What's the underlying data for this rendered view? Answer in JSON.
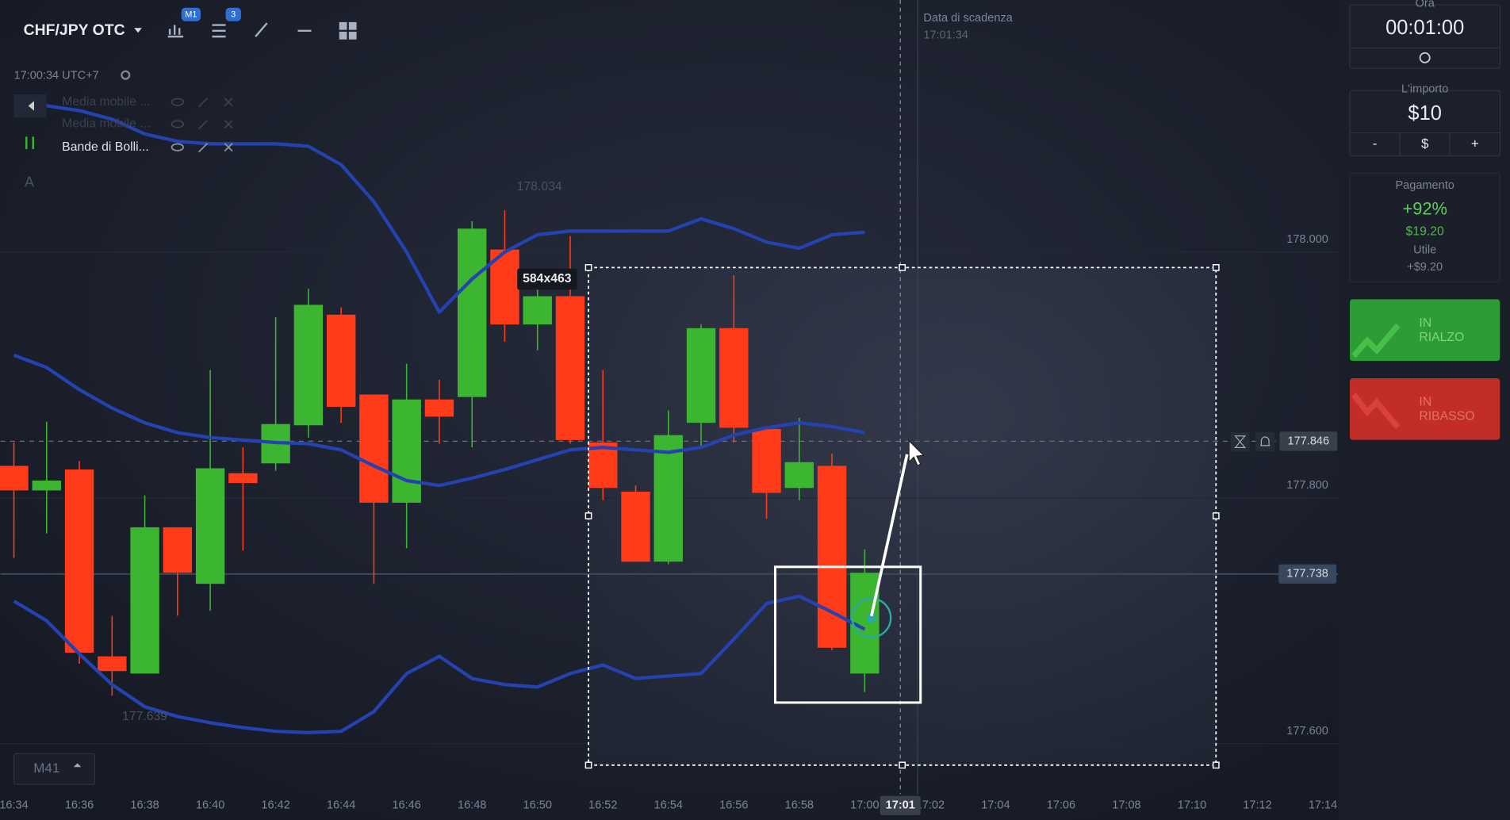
{
  "toolbar": {
    "symbol": "CHF/JPY OTC",
    "timeframe_badge": "M1",
    "indicators_badge": "3"
  },
  "info": {
    "time": "17:00:34 UTC+7"
  },
  "indicators": [
    "Media mobile ...",
    "Media mobile ...",
    "Bande di Bolli..."
  ],
  "text_tool": "A",
  "expiry": {
    "label": "Data di scadenza",
    "time": "17:01:34"
  },
  "selection_size": "584x463",
  "timeframe_selector": "M41",
  "panel": {
    "time_label": "Ora",
    "time": "00:01:00",
    "amount_label": "L'importo",
    "amount": "$10",
    "minus": "-",
    "currency": "$",
    "plus": "+",
    "payout_label": "Pagamento",
    "payout_percent": "+92%",
    "payout_amount": "$19.20",
    "profit_label": "Utile",
    "profit": "+$9.20",
    "up_button": [
      "IN",
      "RIALZO"
    ],
    "down_button": [
      "IN",
      "RIBASSO"
    ]
  },
  "chart_data": {
    "type": "candlestick",
    "x_axis_labels": [
      "16:34",
      "16:36",
      "16:38",
      "16:40",
      "16:42",
      "16:44",
      "16:46",
      "16:48",
      "16:50",
      "16:52",
      "16:54",
      "16:56",
      "16:58",
      "17:00",
      "17:02",
      "17:04",
      "17:06",
      "17:08",
      "17:10",
      "17:12",
      "17:14"
    ],
    "crosshair_time": "17:01",
    "ylim": [
      177.559,
      178.205
    ],
    "yticks": [
      {
        "value": 178,
        "label": "178.000"
      },
      {
        "value": 177.8,
        "label": "177.800"
      },
      {
        "value": 177.6,
        "label": "177.600"
      }
    ],
    "current_price": 177.846,
    "crosshair_price": 177.738,
    "high_label": 178.034,
    "low_label": 177.639,
    "up_color": "#3cb531",
    "down_color": "#ff3b1a",
    "open": [
      177.826,
      177.806,
      177.823,
      177.671,
      177.657,
      177.776,
      177.73,
      177.82,
      177.828,
      177.859,
      177.949,
      177.884,
      177.796,
      177.88,
      177.882,
      178.002,
      177.941,
      177.964,
      177.845,
      177.805,
      177.748,
      177.861,
      177.938,
      177.856,
      177.808,
      177.826,
      177.657
    ],
    "high": [
      177.845,
      177.862,
      177.83,
      177.704,
      177.802,
      177.776,
      177.904,
      177.841,
      177.947,
      177.97,
      177.955,
      177.884,
      177.909,
      177.896,
      178.025,
      178.034,
      177.974,
      178.013,
      177.904,
      177.81,
      177.871,
      177.941,
      177.981,
      177.856,
      177.865,
      177.836,
      177.758
    ],
    "low": [
      177.751,
      177.771,
      177.665,
      177.639,
      177.657,
      177.704,
      177.708,
      177.757,
      177.822,
      177.849,
      177.861,
      177.73,
      177.759,
      177.844,
      177.841,
      177.927,
      177.92,
      177.844,
      177.798,
      177.748,
      177.746,
      177.841,
      177.845,
      177.783,
      177.798,
      177.676,
      177.642
    ],
    "close": [
      177.806,
      177.814,
      177.674,
      177.659,
      177.776,
      177.739,
      177.824,
      177.812,
      177.86,
      177.957,
      177.874,
      177.796,
      177.88,
      177.866,
      178.019,
      177.941,
      177.964,
      177.847,
      177.808,
      177.748,
      177.851,
      177.938,
      177.857,
      177.804,
      177.829,
      177.678,
      177.739
    ],
    "bollinger": {
      "color": "#2443b0",
      "upper": [
        178.123,
        178.119,
        178.115,
        178.108,
        178.096,
        178.09,
        178.088,
        178.088,
        178.088,
        178.086,
        178.071,
        178.041,
        178.0,
        177.951,
        177.978,
        178.0,
        178.014,
        178.017,
        178.017,
        178.017,
        178.017,
        178.027,
        178.019,
        178.008,
        178.003,
        178.014,
        178.016
      ],
      "middle": [
        177.916,
        177.906,
        177.888,
        177.873,
        177.861,
        177.853,
        177.849,
        177.847,
        177.845,
        177.844,
        177.839,
        177.826,
        177.814,
        177.81,
        177.816,
        177.823,
        177.831,
        177.839,
        177.841,
        177.839,
        177.837,
        177.841,
        177.851,
        177.857,
        177.861,
        177.858,
        177.853
      ],
      "lower": [
        177.716,
        177.7,
        177.673,
        177.648,
        177.63,
        177.622,
        177.617,
        177.613,
        177.61,
        177.609,
        177.61,
        177.626,
        177.657,
        177.671,
        177.653,
        177.648,
        177.646,
        177.657,
        177.664,
        177.653,
        177.655,
        177.657,
        177.685,
        177.714,
        177.72,
        177.707,
        177.693
      ]
    }
  }
}
